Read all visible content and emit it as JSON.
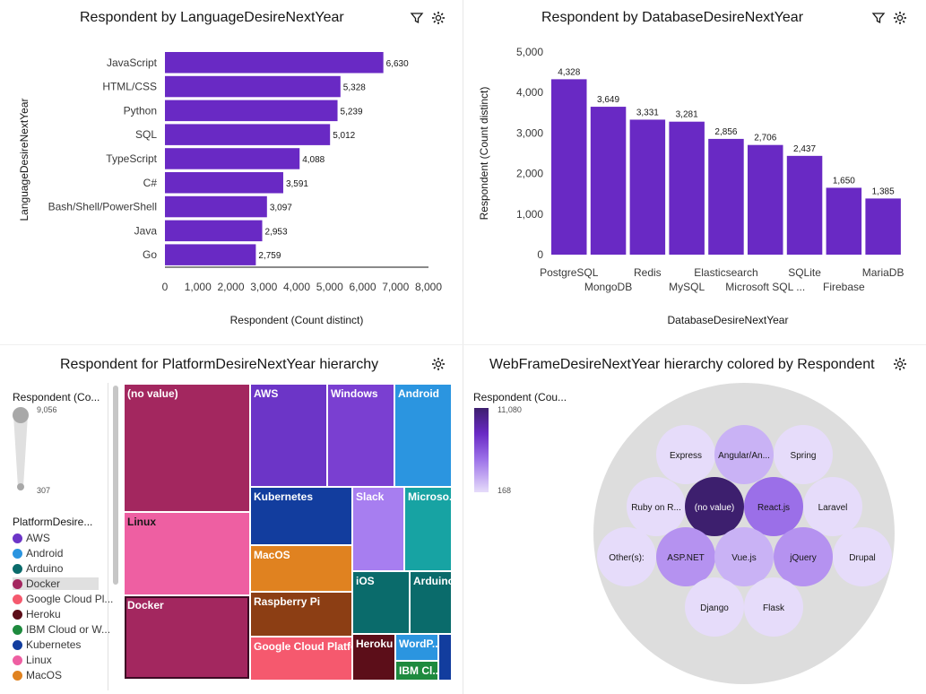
{
  "panels": {
    "lang": {
      "title": "Respondent by LanguageDesireNextYear",
      "xlabel": "Respondent (Count distinct)",
      "ylabel": "LanguageDesireNextYear"
    },
    "db": {
      "title": "Respondent by DatabaseDesireNextYear",
      "xlabel": "DatabaseDesireNextYear",
      "ylabel": "Respondent (Count distinct)"
    },
    "platform": {
      "title": "Respondent for PlatformDesireNextYear hierarchy",
      "size_legend_title": "Respondent (Co...",
      "size_max": "9,056",
      "size_min": "307",
      "color_legend_title": "PlatformDesire...",
      "legend": [
        {
          "label": "AWS",
          "color": "#6c35c7"
        },
        {
          "label": "Android",
          "color": "#2b95e0"
        },
        {
          "label": "Arduino",
          "color": "#0a6b6b"
        },
        {
          "label": "Docker",
          "color": "#a3275f"
        },
        {
          "label": "Google Cloud Pl...",
          "color": "#f5596e"
        },
        {
          "label": "Heroku",
          "color": "#5c0e19"
        },
        {
          "label": "IBM Cloud or W...",
          "color": "#1e8a3e"
        },
        {
          "label": "Kubernetes",
          "color": "#123d9e"
        },
        {
          "label": "Linux",
          "color": "#ee5fa2"
        },
        {
          "label": "MacOS",
          "color": "#e08220"
        }
      ],
      "tiles": [
        {
          "label": "(no value)",
          "color": "#a3275f"
        },
        {
          "label": "Linux",
          "color": "#ee5fa2"
        },
        {
          "label": "Docker",
          "color": "#a3275f"
        },
        {
          "label": "AWS",
          "color": "#6c35c7"
        },
        {
          "label": "Windows",
          "color": "#7a3fd1"
        },
        {
          "label": "Android",
          "color": "#2b95e0"
        },
        {
          "label": "Kubernetes",
          "color": "#123d9e"
        },
        {
          "label": "Slack",
          "color": "#a77ef0"
        },
        {
          "label": "Microso...",
          "color": "#17a3a3"
        },
        {
          "label": "MacOS",
          "color": "#e08220"
        },
        {
          "label": "Raspberry Pi",
          "color": "#8c3e14"
        },
        {
          "label": "iOS",
          "color": "#0a6b6b"
        },
        {
          "label": "Arduino",
          "color": "#0a6b6b"
        },
        {
          "label": "Google Cloud Platfo...",
          "color": "#f5596e"
        },
        {
          "label": "Heroku",
          "color": "#5c0e19"
        },
        {
          "label": "WordP...",
          "color": "#2b95e0"
        },
        {
          "label": "IBM Cl...",
          "color": "#1e8a3e"
        },
        {
          "label": "",
          "color": "#123d9e"
        }
      ]
    },
    "web": {
      "title": "WebFrameDesireNextYear hierarchy colored by Respondent",
      "legend_title": "Respondent (Cou...",
      "legend_max": "11,080",
      "legend_min": "168",
      "bubbles": [
        {
          "label": "Express",
          "color": "#e6dcfa"
        },
        {
          "label": "Angular/An...",
          "color": "#c9b2f5"
        },
        {
          "label": "Spring",
          "color": "#e6dcfa"
        },
        {
          "label": "Ruby on R...",
          "color": "#e6dcfa"
        },
        {
          "label": "(no value)",
          "color": "#3d1f6e"
        },
        {
          "label": "React.js",
          "color": "#9b6fe8"
        },
        {
          "label": "Laravel",
          "color": "#e6dcfa"
        },
        {
          "label": "Other(s):",
          "color": "#e6dcfa"
        },
        {
          "label": "ASP.NET",
          "color": "#b592f0"
        },
        {
          "label": "Vue.js",
          "color": "#c9b2f5"
        },
        {
          "label": "jQuery",
          "color": "#b592f0"
        },
        {
          "label": "Drupal",
          "color": "#e6dcfa"
        },
        {
          "label": "Django",
          "color": "#e6dcfa"
        },
        {
          "label": "Flask",
          "color": "#e6dcfa"
        }
      ]
    }
  },
  "chart_data": [
    {
      "type": "bar",
      "orientation": "horizontal",
      "title": "Respondent by LanguageDesireNextYear",
      "xlabel": "Respondent (Count distinct)",
      "ylabel": "LanguageDesireNextYear",
      "categories": [
        "JavaScript",
        "HTML/CSS",
        "Python",
        "SQL",
        "TypeScript",
        "C#",
        "Bash/Shell/PowerShell",
        "Java",
        "Go"
      ],
      "values": [
        6630,
        5328,
        5239,
        5012,
        4088,
        3591,
        3097,
        2953,
        2759
      ],
      "value_labels": [
        "6,630",
        "5,328",
        "5,239",
        "5,012",
        "4,088",
        "3,591",
        "3,097",
        "2,953",
        "2,759"
      ],
      "xlim": [
        0,
        8000
      ],
      "ticks": [
        "0",
        "1,000",
        "2,000",
        "3,000",
        "4,000",
        "5,000",
        "6,000",
        "7,000",
        "8,000"
      ],
      "color": "#6929c4"
    },
    {
      "type": "bar",
      "orientation": "vertical",
      "title": "Respondent by DatabaseDesireNextYear",
      "xlabel": "DatabaseDesireNextYear",
      "ylabel": "Respondent (Count distinct)",
      "categories": [
        "PostgreSQL",
        "MongoDB",
        "Redis",
        "MySQL",
        "Elasticsearch",
        "Microsoft SQL ...",
        "SQLite",
        "Firebase",
        "MariaDB"
      ],
      "values": [
        4328,
        3649,
        3331,
        3281,
        2856,
        2706,
        2437,
        1650,
        1385
      ],
      "value_labels": [
        "4,328",
        "3,649",
        "3,331",
        "3,281",
        "2,856",
        "2,706",
        "2,437",
        "1,650",
        "1,385"
      ],
      "ylim": [
        0,
        5000
      ],
      "ticks": [
        "0",
        "1,000",
        "2,000",
        "3,000",
        "4,000",
        "5,000"
      ],
      "color": "#6929c4"
    }
  ]
}
